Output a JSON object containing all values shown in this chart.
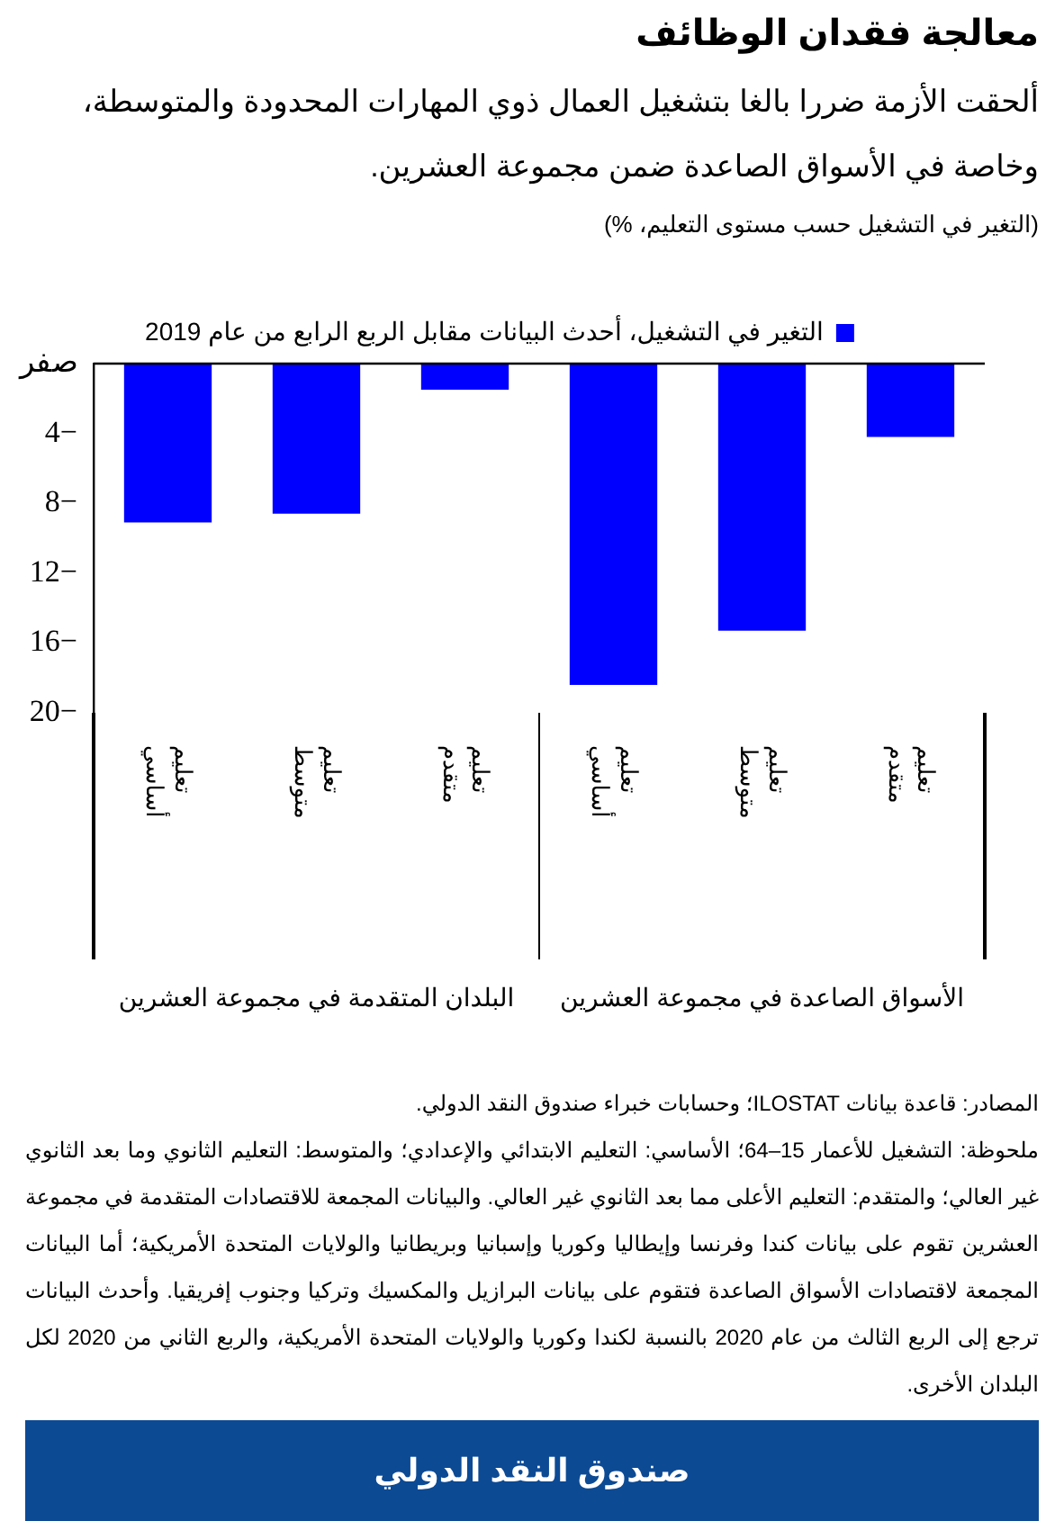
{
  "chart_data": {
    "type": "bar",
    "title": "معالجة فقدان الوظائف",
    "subtitle": "ألحقت الأزمة ضررا بالغا بتشغيل العمال ذوي المهارات المحدودة والمتوسطة، وخاصة في الأسواق الصاعدة ضمن مجموعة العشرين.",
    "ylabel": "(التغير في التشغيل حسب مستوى التعليم، %)",
    "categories": [
      "تعليم أساسي",
      "تعليم متوسط",
      "تعليم متقدم",
      "تعليم أساسي",
      "تعليم متوسط",
      "تعليم متقدم"
    ],
    "series": [
      {
        "name": "التغير في التشغيل، أحدث البيانات مقابل الربع الرابع من عام 2019",
        "color": "#0000ff",
        "values": [
          -9.1,
          -8.6,
          -1.5,
          -18.4,
          -15.3,
          -4.2
        ]
      }
    ],
    "ylim": [
      -20,
      0
    ],
    "yticks": [
      {
        "value": 0,
        "label": "صفر"
      },
      {
        "value": -4,
        "label": "4−"
      },
      {
        "value": -8,
        "label": "8−"
      },
      {
        "value": -12,
        "label": "12−"
      },
      {
        "value": -16,
        "label": "16−"
      },
      {
        "value": -20,
        "label": "20−"
      }
    ],
    "grid": false,
    "legend": "top",
    "annotations": [
      "البلدان المتقدمة في مجموعة العشرين",
      "الأسواق الصاعدة في مجموعة العشرين",
      "المصادر: قاعدة بيانات ILOSTAT؛ وحسابات خبراء صندوق النقد الدولي.",
      "ملحوظة: التشغيل للأعمار 15–64؛ الأساسي: التعليم الابتدائي والإعدادي؛ والمتوسط: التعليم الثانوي وما بعد الثانوي غير العالي؛ والمتقدم: التعليم الأعلى مما بعد الثانوي غير العالي. والبيانات المجمعة للاقتصادات المتقدمة في مجموعة العشرين تقوم على بيانات كندا وفرنسا وإيطاليا وكوريا وإسبانيا وبريطانيا والولايات المتحدة الأمريكية؛ أما البيانات المجمعة لاقتصادات الأسواق الصاعدة فتقوم على بيانات البرازيل والمكسيك وتركيا وجنوب إفريقيا. وأحدث البيانات ترجع إلى الربع الثالث من عام 2020 بالنسبة لكندا وكوريا والولايات المتحدة الأمريكية، والربع الثاني من 2020 لكل البلدان الأخرى.",
      "صندوق النقد الدولي"
    ]
  }
}
